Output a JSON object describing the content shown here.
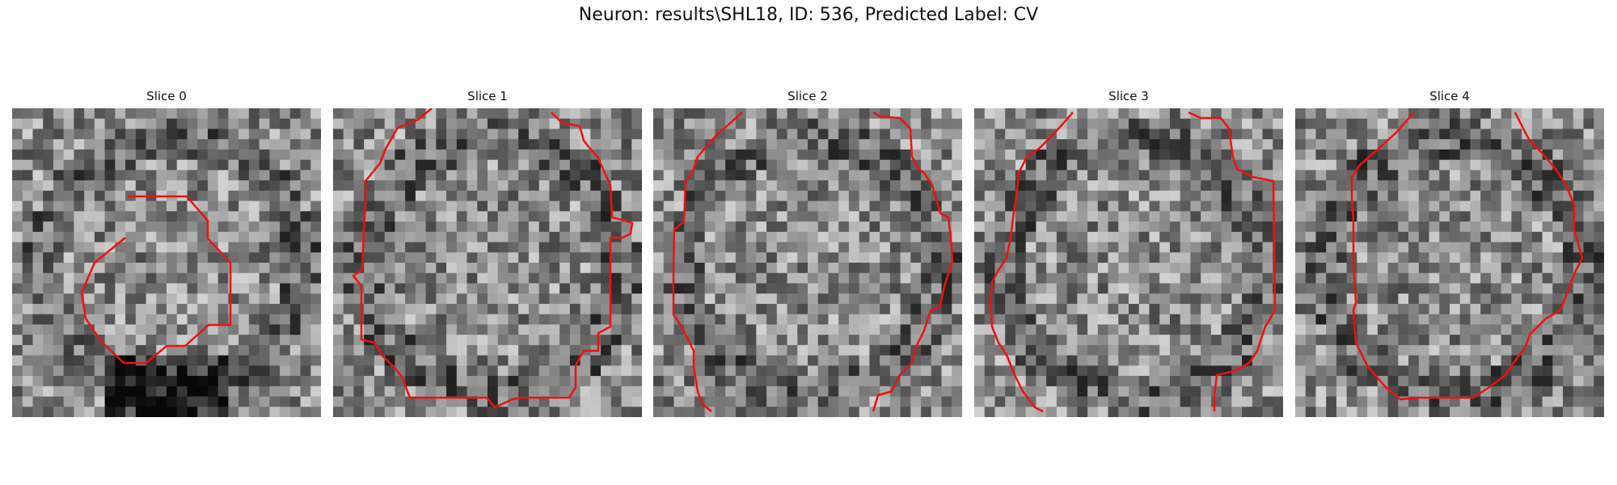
{
  "figure": {
    "title": "Neuron: results\\SHL18, ID: 536, Predicted Label: CV",
    "contour_color": "#ee1111",
    "grid_size": 30
  },
  "slices": [
    {
      "title": "Slice 0",
      "seed": 11
    },
    {
      "title": "Slice 1",
      "seed": 23
    },
    {
      "title": "Slice 2",
      "seed": 37
    },
    {
      "title": "Slice 3",
      "seed": 41
    },
    {
      "title": "Slice 4",
      "seed": 59
    }
  ]
}
